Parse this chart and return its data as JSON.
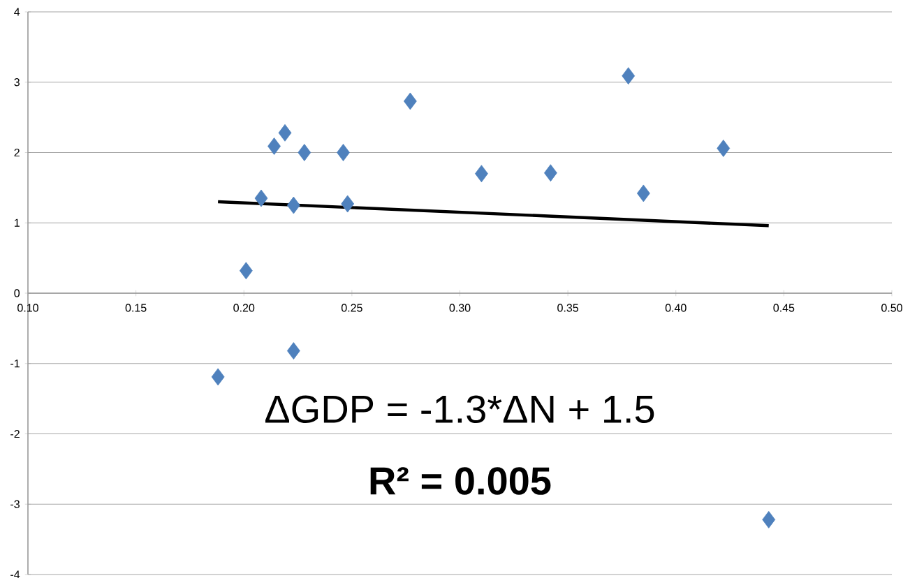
{
  "chart_data": {
    "type": "scatter",
    "marker": "diamond",
    "grid": "y",
    "xlim": [
      0.1,
      0.5
    ],
    "ylim": [
      -4,
      4
    ],
    "xticks": [
      {
        "value": 0.1,
        "label": "0.10"
      },
      {
        "value": 0.15,
        "label": "0.15"
      },
      {
        "value": 0.2,
        "label": "0.20"
      },
      {
        "value": 0.25,
        "label": "0.25"
      },
      {
        "value": 0.3,
        "label": "0.30"
      },
      {
        "value": 0.35,
        "label": "0.35"
      },
      {
        "value": 0.4,
        "label": "0.40"
      },
      {
        "value": 0.45,
        "label": "0.45"
      },
      {
        "value": 0.5,
        "label": "0.50"
      }
    ],
    "yticks": [
      -4,
      -3,
      -2,
      -1,
      0,
      1,
      2,
      3,
      4
    ],
    "series": [
      {
        "color": "#4f81bd",
        "x": [
          0.188,
          0.201,
          0.208,
          0.214,
          0.219,
          0.223,
          0.223,
          0.228,
          0.246,
          0.248,
          0.277,
          0.31,
          0.342,
          0.378,
          0.385,
          0.422,
          0.443
        ],
        "values": [
          -1.19,
          0.32,
          1.35,
          2.09,
          2.28,
          -0.82,
          1.25,
          2.0,
          2.0,
          1.27,
          2.73,
          1.7,
          1.71,
          3.09,
          1.42,
          2.06,
          -3.22
        ]
      },
      {
        "type": "line",
        "color": "#000000",
        "marker": "none",
        "x": [
          0.188,
          0.443
        ],
        "values": [
          1.3,
          0.96
        ]
      }
    ],
    "annotations": [
      "ΔGDP = -1.3*ΔN + 1.5",
      "R² = 0.005"
    ]
  }
}
